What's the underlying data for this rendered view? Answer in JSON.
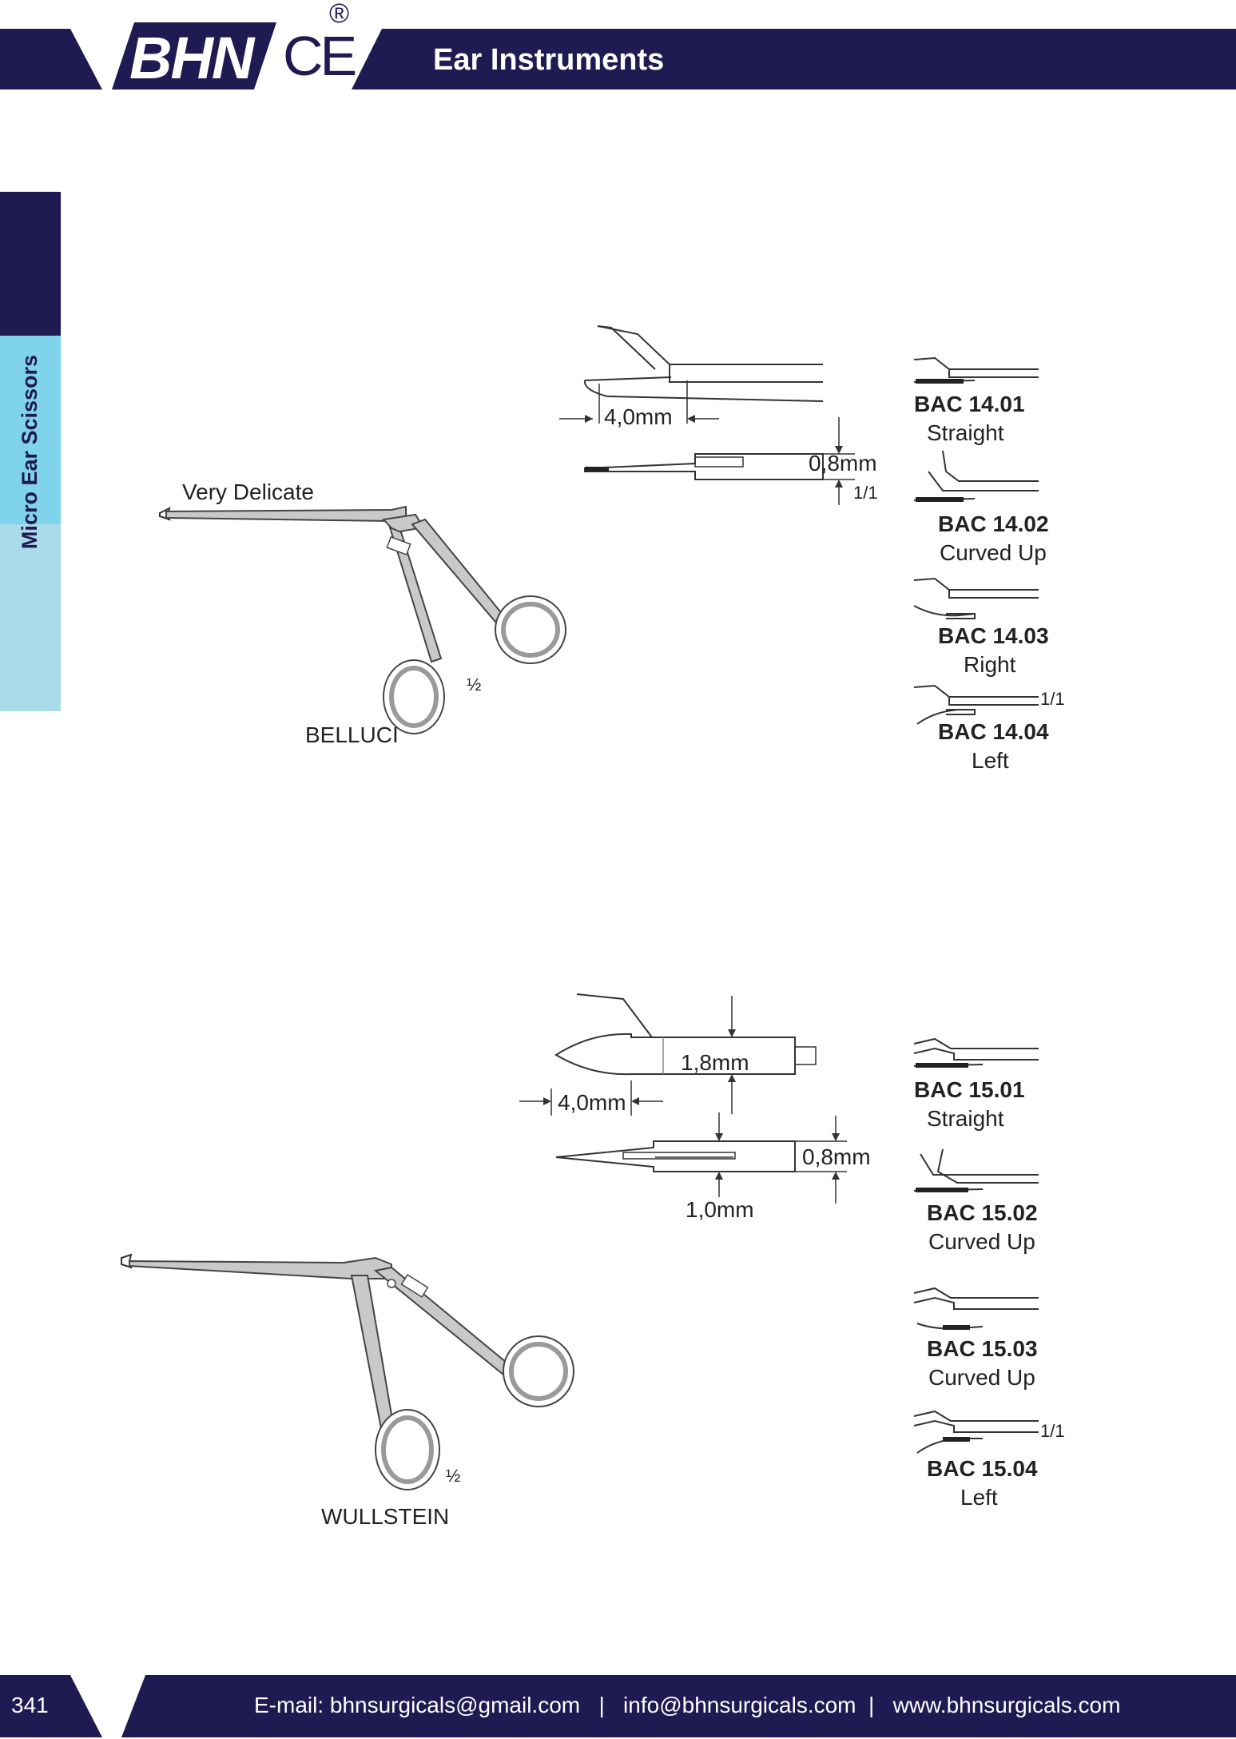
{
  "header": {
    "brand": "BHN",
    "ce_mark": "CE",
    "registered": "®",
    "title": "Ear Instruments",
    "color": "#201a52"
  },
  "side_tab": {
    "label": "Micro Ear Scissors",
    "colors": [
      "#201a52",
      "#7fd3ea",
      "#a9dbe9"
    ]
  },
  "product1": {
    "note": "Very Delicate",
    "name": "BELLUCI",
    "half": "½",
    "dim_width": "4,0mm",
    "dim_height": "0,8mm",
    "scale": "1/1",
    "variants": [
      {
        "code": "BAC 14.01",
        "type": "Straight"
      },
      {
        "code": "BAC 14.02",
        "type": "Curved Up"
      },
      {
        "code": "BAC 14.03",
        "type": "Right"
      },
      {
        "code": "BAC 14.04",
        "type": "Left"
      }
    ],
    "variant_scale": "1/1"
  },
  "product2": {
    "name": "WULLSTEIN",
    "half": "½",
    "dim_width": "4,0mm",
    "dim_diameter": "1,8mm",
    "dim_height": "0,8mm",
    "dim_jaw": "1,0mm",
    "variants": [
      {
        "code": "BAC 15.01",
        "type": "Straight"
      },
      {
        "code": "BAC 15.02",
        "type": "Curved Up"
      },
      {
        "code": "BAC 15.03",
        "type": "Curved Up"
      },
      {
        "code": "BAC 15.04",
        "type": "Left"
      }
    ],
    "variant_scale": "1/1"
  },
  "footer": {
    "page_number": "341",
    "contact": "E-mail: bhnsurgicals@gmail.com   |   info@bhnsurgicals.com  |   www.bhnsurgicals.com"
  }
}
